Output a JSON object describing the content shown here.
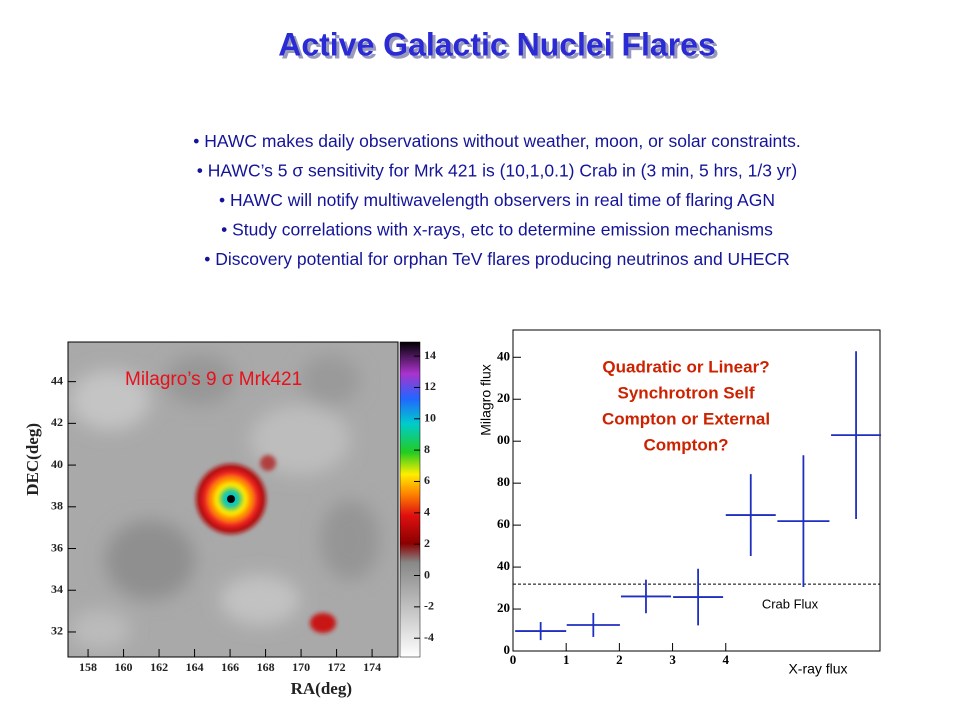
{
  "title": "Active Galactic Nuclei Flares",
  "bullets": [
    "HAWC makes daily observations without weather, moon, or solar constraints.",
    "HAWC’s 5 σ sensitivity for Mrk 421 is (10,1,0.1) Crab in (3 min, 5 hrs, 1/3 yr)",
    "HAWC will notify multiwavelength observers in real time of flaring AGN",
    "Study correlations with x-rays, etc to determine emission mechanisms",
    "Discovery potential for orphan TeV flares producing neutrinos and UHECR"
  ],
  "heatmap": {
    "label": "Milagro’s 9 σ Mrk421",
    "xlabel": "RA(deg)",
    "ylabel": "DEC(deg)",
    "xlim": [
      156.87,
      175.46
    ],
    "ylim": [
      30.8,
      45.9
    ],
    "xticks": [
      158,
      160,
      162,
      164,
      166,
      168,
      170,
      172,
      174
    ],
    "yticks": [
      32,
      34,
      36,
      38,
      40,
      42,
      44
    ],
    "colorbar_lim": [
      -5.2,
      14.9
    ],
    "colorbar_ticks": [
      -4,
      -2,
      0,
      2,
      4,
      6,
      8,
      10,
      12,
      14
    ]
  },
  "chart_data": {
    "type": "errorbar",
    "annotation": [
      "Quadratic or Linear?",
      "Synchrotron Self",
      "Compton or External",
      "Compton?"
    ],
    "ylabel": "Milagro flux",
    "xlabel": "X-ray flux",
    "xlim": [
      0,
      6.9
    ],
    "ylim": [
      0,
      153
    ],
    "xticks": [
      0,
      1,
      2,
      3,
      4
    ],
    "yticks": [
      0,
      20,
      40,
      60,
      80,
      {
        "value": 100,
        "label": "00"
      },
      {
        "value": 120,
        "label": "20"
      },
      {
        "value": 140,
        "label": "40"
      }
    ],
    "color": "#1f2fbf",
    "x": [
      0.52,
      1.51,
      2.5,
      3.48,
      4.47,
      5.46,
      6.45
    ],
    "xerr": [
      0.48,
      0.5,
      0.47,
      0.47,
      0.47,
      0.49,
      0.47
    ],
    "values": [
      9.5,
      12.4,
      26,
      25.7,
      64.8,
      61.9,
      102.9
    ],
    "yerr": [
      4.3,
      5.7,
      8,
      13.5,
      19.5,
      31.4,
      40
    ],
    "reference": {
      "label": "Crab Flux",
      "value": 31.9
    }
  }
}
